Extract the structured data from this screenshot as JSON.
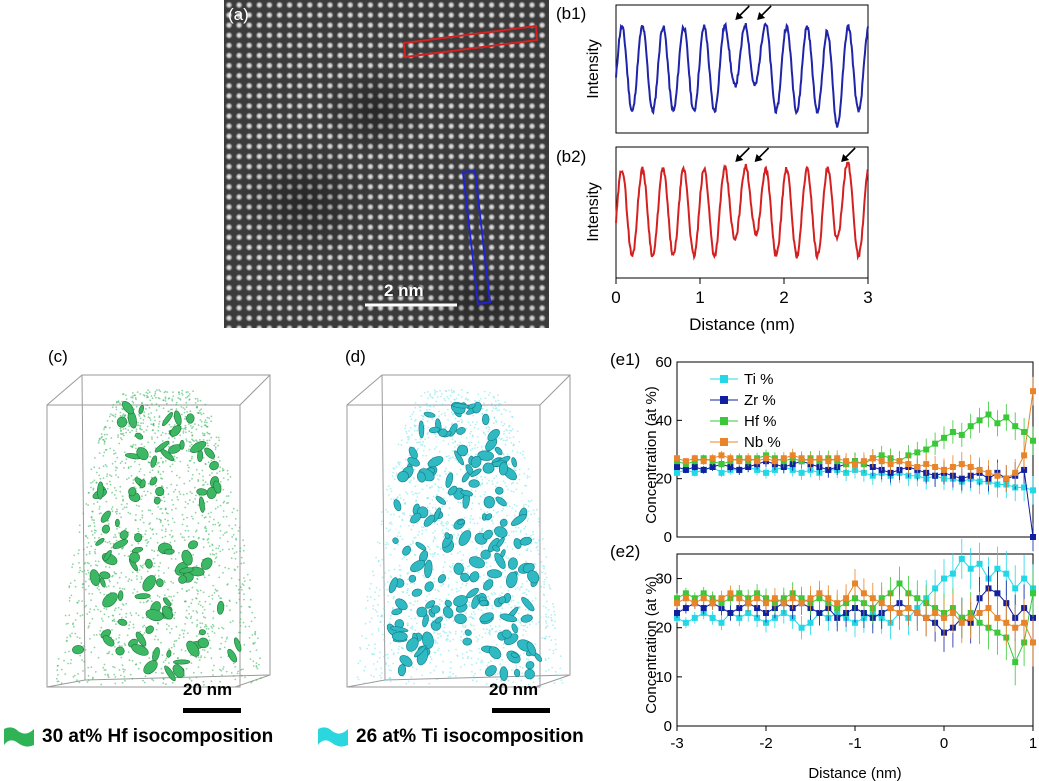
{
  "figure": {
    "panel_labels": {
      "a": "(a)",
      "b1": "(b1)",
      "b2": "(b2)",
      "c": "(c)",
      "d": "(d)",
      "e1": "(e1)",
      "e2": "(e2)"
    },
    "stem_scale_bar": "2 nm",
    "apt_scale_bar_c": "20 nm",
    "apt_scale_bar_d": "20 nm",
    "legend_c": "30 at% Hf isocomposition",
    "legend_d": "26 at% Ti isocomposition",
    "colors": {
      "b1_line": "#1f24a8",
      "b2_line": "#d42020",
      "hf_iso": "#2fb356",
      "ti_iso": "#2ad7df",
      "ti": "#22d8e6",
      "zr": "#1020a0",
      "hf": "#38c838",
      "nb": "#e8842a"
    }
  },
  "chart_data": [
    {
      "id": "b1",
      "type": "line",
      "ylabel": "Intensity",
      "xlabel": "",
      "xlim": [
        0,
        3
      ],
      "arrows_at_x": [
        1.42,
        1.68
      ]
    },
    {
      "id": "b2",
      "type": "line",
      "ylabel": "Intensity",
      "xlabel": "Distance (nm)",
      "xlim": [
        0,
        3
      ],
      "xticks": [
        "0",
        "1",
        "2",
        "3"
      ],
      "arrows_at_x": [
        1.42,
        1.65,
        2.68
      ]
    },
    {
      "id": "e1",
      "type": "line",
      "ylabel": "Concentration (at %)",
      "xlabel": "",
      "xlim": [
        -3,
        1
      ],
      "ylim": [
        0,
        60
      ],
      "yticks": [
        "0",
        "20",
        "40",
        "60"
      ],
      "legend": [
        "Ti %",
        "Zr %",
        "Hf %",
        "Nb %"
      ],
      "x": [
        -3.0,
        -2.9,
        -2.8,
        -2.7,
        -2.6,
        -2.5,
        -2.4,
        -2.3,
        -2.2,
        -2.1,
        -2.0,
        -1.9,
        -1.8,
        -1.7,
        -1.6,
        -1.5,
        -1.4,
        -1.3,
        -1.2,
        -1.1,
        -1.0,
        -0.9,
        -0.8,
        -0.7,
        -0.6,
        -0.5,
        -0.4,
        -0.3,
        -0.2,
        -0.1,
        0.0,
        0.1,
        0.2,
        0.3,
        0.4,
        0.5,
        0.6,
        0.7,
        0.8,
        0.9,
        1.0
      ],
      "series": [
        {
          "name": "Ti %",
          "values": [
            22,
            23,
            22,
            23,
            24,
            22,
            23,
            23,
            24,
            23,
            22,
            23,
            24,
            23,
            22,
            23,
            22,
            23,
            23,
            22,
            23,
            22,
            21,
            22,
            21,
            22,
            21,
            21,
            20,
            21,
            20,
            20,
            19,
            20,
            19,
            19,
            18,
            18,
            17,
            17,
            16
          ]
        },
        {
          "name": "Zr %",
          "values": [
            24,
            23,
            24,
            23,
            24,
            25,
            24,
            23,
            24,
            25,
            26,
            25,
            24,
            25,
            26,
            25,
            24,
            23,
            24,
            25,
            26,
            25,
            24,
            23,
            22,
            23,
            24,
            23,
            22,
            21,
            22,
            21,
            20,
            21,
            22,
            20,
            22,
            20,
            21,
            23,
            0
          ]
        },
        {
          "name": "Hf %",
          "values": [
            26,
            25,
            26,
            27,
            26,
            25,
            26,
            27,
            26,
            27,
            28,
            27,
            26,
            27,
            26,
            27,
            26,
            27,
            26,
            25,
            26,
            25,
            27,
            28,
            27,
            26,
            28,
            29,
            30,
            32,
            34,
            36,
            35,
            38,
            40,
            42,
            39,
            41,
            38,
            36,
            33
          ]
        },
        {
          "name": "Nb %",
          "values": [
            27,
            26,
            27,
            26,
            27,
            28,
            27,
            26,
            27,
            26,
            27,
            26,
            27,
            28,
            27,
            26,
            27,
            26,
            27,
            26,
            25,
            26,
            27,
            26,
            25,
            26,
            25,
            24,
            25,
            24,
            23,
            24,
            25,
            24,
            23,
            22,
            21,
            20,
            22,
            28,
            50
          ]
        }
      ]
    },
    {
      "id": "e2",
      "type": "line",
      "ylabel": "Concentration (at %)",
      "xlabel": "Distance (nm)",
      "xlim": [
        -3,
        1
      ],
      "ylim": [
        0,
        35
      ],
      "xticks": [
        "-3",
        "-2",
        "-1",
        "0",
        "1"
      ],
      "yticks": [
        "0",
        "10",
        "20",
        "30"
      ],
      "x": [
        -3.0,
        -2.9,
        -2.8,
        -2.7,
        -2.6,
        -2.5,
        -2.4,
        -2.3,
        -2.2,
        -2.1,
        -2.0,
        -1.9,
        -1.8,
        -1.7,
        -1.6,
        -1.5,
        -1.4,
        -1.3,
        -1.2,
        -1.1,
        -1.0,
        -0.9,
        -0.8,
        -0.7,
        -0.6,
        -0.5,
        -0.4,
        -0.3,
        -0.2,
        -0.1,
        0.0,
        0.1,
        0.2,
        0.3,
        0.4,
        0.5,
        0.6,
        0.7,
        0.8,
        0.9,
        1.0
      ],
      "series": [
        {
          "name": "Ti %",
          "values": [
            22,
            21,
            22,
            23,
            22,
            21,
            23,
            22,
            23,
            22,
            21,
            22,
            23,
            22,
            20,
            21,
            23,
            22,
            23,
            22,
            21,
            22,
            23,
            22,
            21,
            23,
            22,
            24,
            26,
            28,
            30,
            31,
            34,
            32,
            33,
            30,
            32,
            31,
            28,
            30,
            28
          ]
        },
        {
          "name": "Zr %",
          "values": [
            23,
            24,
            25,
            24,
            25,
            24,
            23,
            24,
            25,
            24,
            23,
            24,
            25,
            24,
            25,
            24,
            23,
            24,
            22,
            23,
            24,
            23,
            22,
            23,
            24,
            25,
            24,
            23,
            22,
            21,
            19,
            20,
            22,
            21,
            26,
            28,
            27,
            25,
            22,
            24,
            22
          ]
        },
        {
          "name": "Hf %",
          "values": [
            26,
            27,
            26,
            27,
            26,
            25,
            26,
            27,
            26,
            27,
            26,
            25,
            26,
            27,
            26,
            25,
            26,
            25,
            24,
            25,
            26,
            25,
            24,
            26,
            27,
            29,
            27,
            26,
            25,
            24,
            23,
            24,
            22,
            23,
            21,
            20,
            19,
            18,
            13,
            17,
            27
          ]
        },
        {
          "name": "Nb %",
          "values": [
            25,
            26,
            25,
            26,
            25,
            26,
            27,
            26,
            25,
            26,
            25,
            26,
            25,
            26,
            25,
            26,
            27,
            26,
            25,
            26,
            29,
            27,
            26,
            25,
            24,
            23,
            24,
            23,
            22,
            23,
            22,
            23,
            21,
            22,
            23,
            24,
            22,
            21,
            20,
            21,
            17
          ]
        }
      ]
    }
  ]
}
